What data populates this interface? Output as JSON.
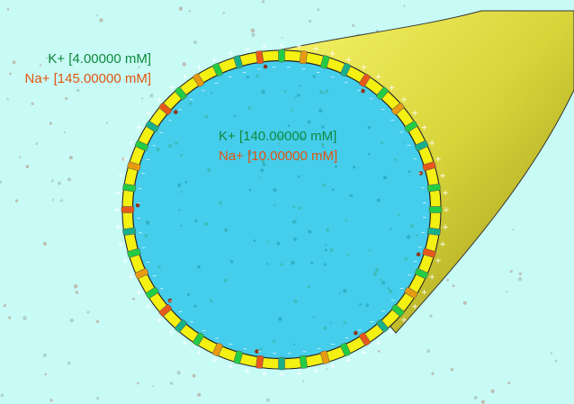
{
  "outside": {
    "k_label": "K+ [4.00000 mM]",
    "na_label": "Na+ [145.00000 mM]"
  },
  "inside": {
    "k_label": "K+ [140.00000 mM]",
    "na_label": "Na+ [10.00000 mM]"
  },
  "colors": {
    "extracellular": "#c8fbf6",
    "cytoplasm": "#45cdec",
    "membrane": "#f3f012",
    "axon": "#d8d43a",
    "k_color": "#0e8a3c",
    "na_color": "#e0560f",
    "k_channel": "#17b08a",
    "na_channel": "#e8581c",
    "leak_channel": "#22cc44",
    "pump": "#e89a10"
  },
  "icons": {
    "positive_charge": "plus-icon",
    "negative_charge": "minus-icon"
  }
}
